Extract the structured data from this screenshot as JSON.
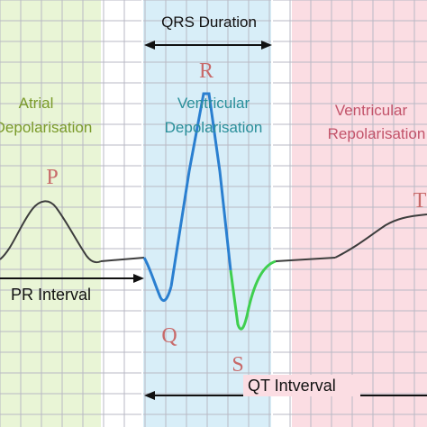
{
  "phases": {
    "atrial": {
      "line1": "Atrial",
      "line2": "Depolarisation"
    },
    "ventricular_depol": {
      "line1": "Ventricular",
      "line2": "Depolarisation"
    },
    "ventricular_repol": {
      "line1": "Ventricular",
      "line2": "Repolarisation"
    }
  },
  "intervals": {
    "qrs_duration": "QRS Duration",
    "pr_interval": "PR Interval",
    "qt_interval": "QT Intverval"
  },
  "waves": {
    "p": "P",
    "q": "Q",
    "r": "R",
    "s": "S",
    "t": "T"
  },
  "colors": {
    "atrial_zone": "#e9f5d6",
    "qrs_zone": "#d8eef8",
    "repol_zone": "#fbdde3",
    "grid": "#b9b9c4",
    "trace_dark": "#3d3d3d",
    "trace_blue": "#2a7fd0",
    "trace_green": "#3fcf4f",
    "atrial_text": "#7a9a2a",
    "depol_text": "#2a8f9a",
    "repol_text": "#c2536a",
    "wave_letter": "#c86a6a"
  }
}
